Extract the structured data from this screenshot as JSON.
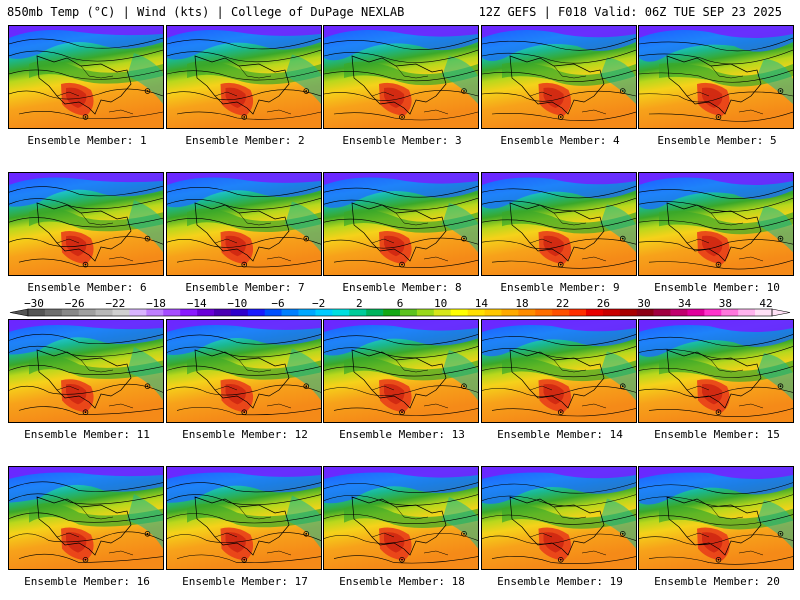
{
  "header": {
    "title_left": "850mb Temp (°C) | Wind (kts) | College of DuPage NEXLAB",
    "title_right": "12Z GEFS | F018 Valid: 06Z TUE SEP 23 2025"
  },
  "panels": [
    {
      "caption": "Ensemble Member: 1"
    },
    {
      "caption": "Ensemble Member: 2"
    },
    {
      "caption": "Ensemble Member: 3"
    },
    {
      "caption": "Ensemble Member: 4"
    },
    {
      "caption": "Ensemble Member: 5"
    },
    {
      "caption": "Ensemble Member: 6"
    },
    {
      "caption": "Ensemble Member: 7"
    },
    {
      "caption": "Ensemble Member: 8"
    },
    {
      "caption": "Ensemble Member: 9"
    },
    {
      "caption": "Ensemble Member: 10"
    },
    {
      "caption": "Ensemble Member: 11"
    },
    {
      "caption": "Ensemble Member: 12"
    },
    {
      "caption": "Ensemble Member: 13"
    },
    {
      "caption": "Ensemble Member: 14"
    },
    {
      "caption": "Ensemble Member: 15"
    },
    {
      "caption": "Ensemble Member: 16"
    },
    {
      "caption": "Ensemble Member: 17"
    },
    {
      "caption": "Ensemble Member: 18"
    },
    {
      "caption": "Ensemble Member: 19"
    },
    {
      "caption": "Ensemble Member: 20"
    }
  ],
  "colorbar": {
    "tick_labels": [
      "−30",
      "−26",
      "−22",
      "−18",
      "−14",
      "−10",
      "−6",
      "−2",
      "2",
      "6",
      "10",
      "14",
      "18",
      "22",
      "26",
      "30",
      "34",
      "38",
      "42"
    ],
    "colors": [
      "#555555",
      "#6e6e6e",
      "#888888",
      "#a0a0a0",
      "#b8b8b8",
      "#d0d0d0",
      "#d8b4ff",
      "#bf7fff",
      "#a64dff",
      "#8a1aff",
      "#6a00d9",
      "#4b00b3",
      "#2f00cc",
      "#1a1aff",
      "#0050ff",
      "#0080ff",
      "#00a8ff",
      "#00ccff",
      "#00e0e0",
      "#00cc99",
      "#00b35c",
      "#14a814",
      "#5cc21f",
      "#99d91a",
      "#d6e61a",
      "#ffff00",
      "#ffe000",
      "#ffc800",
      "#ffaa00",
      "#ff8c00",
      "#ff6e00",
      "#ff5000",
      "#ff2e00",
      "#e60000",
      "#c80000",
      "#a80000",
      "#8c0014",
      "#a00040",
      "#c0006e",
      "#e0009c",
      "#ff33cc",
      "#ff77dd",
      "#ffb3ee",
      "#ffe0f6"
    ]
  },
  "map_colors": {
    "deep_purple": "#7a1aff",
    "blue": "#1e6bff",
    "cyan": "#22c8e8",
    "teal": "#1ab890",
    "green": "#3aa82a",
    "yellow_green": "#b8d81c",
    "yellow": "#f5d21a",
    "orange": "#f7a21a",
    "warm_orange": "#f58a18",
    "red": "#e8381a",
    "contour": "#000000"
  }
}
